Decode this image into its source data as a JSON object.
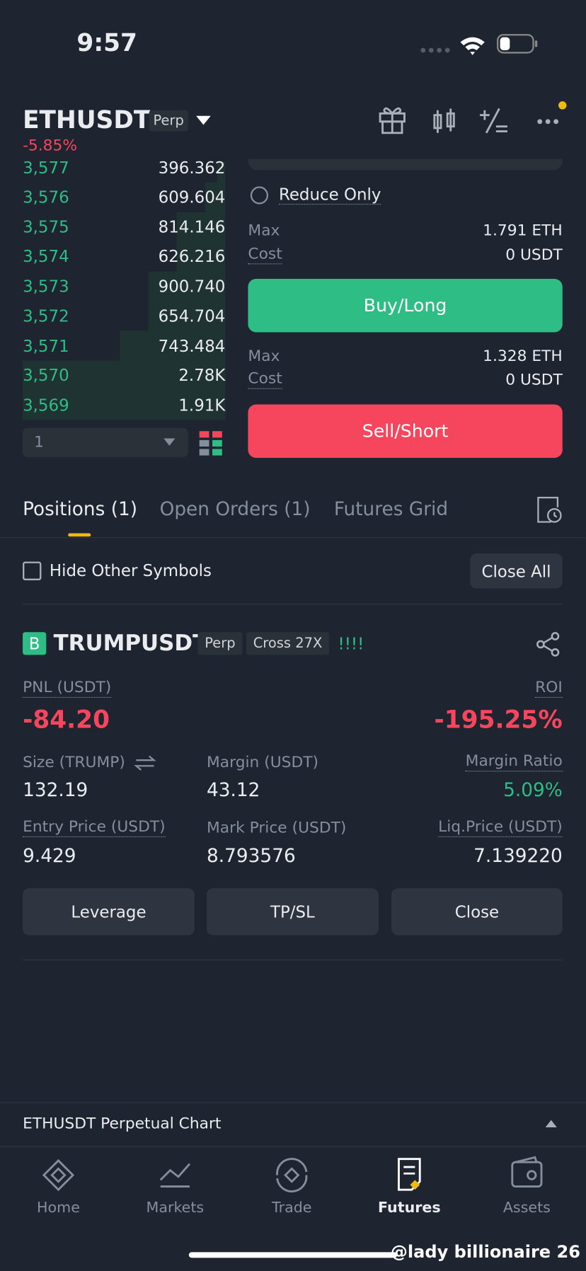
{
  "status_bar": {
    "time": "9:57"
  },
  "header": {
    "symbol": "ETHUSDT",
    "tag": "Perp",
    "change": "-5.85%"
  },
  "order_book": {
    "rows": [
      [
        "3,577",
        "396.362"
      ],
      [
        "3,576",
        "609.604"
      ],
      [
        "3,575",
        "814.146"
      ],
      [
        "3,574",
        "626.216"
      ],
      [
        "3,573",
        "900.740"
      ],
      [
        "3,572",
        "654.704"
      ],
      [
        "3,571",
        "743.484"
      ],
      [
        "3,570",
        "2.78K"
      ],
      [
        "3,569",
        "1.91K"
      ]
    ],
    "depth": "1"
  },
  "order_form": {
    "reduce_only": "Reduce Only",
    "buy": {
      "max_label": "Max",
      "max": "1.791 ETH",
      "cost_label": "Cost",
      "cost": "0 USDT",
      "button": "Buy/Long"
    },
    "sell": {
      "max_label": "Max",
      "max": "1.328 ETH",
      "cost_label": "Cost",
      "cost": "0 USDT",
      "button": "Sell/Short"
    }
  },
  "tabs": [
    "Positions (1)",
    "Open Orders (1)",
    "Futures Grid"
  ],
  "filter": {
    "hide_other": "Hide Other Symbols",
    "close_all": "Close All"
  },
  "position": {
    "badge": "B",
    "symbol": "TRUMPUSDT",
    "tags": [
      "Perp",
      "Cross 27X"
    ],
    "signal": "!!!!",
    "pnl_label": "PNL (USDT)",
    "pnl": "-84.20",
    "roi_label": "ROI",
    "roi": "-195.25%",
    "size_label": "Size (TRUMP)",
    "size": "132.19",
    "margin_label": "Margin (USDT)",
    "margin": "43.12",
    "ratio_label": "Margin Ratio",
    "ratio": "5.09%",
    "entry_label": "Entry Price (USDT)",
    "entry": "9.429",
    "mark_label": "Mark Price (USDT)",
    "mark": "8.793576",
    "liq_label": "Liq.Price (USDT)",
    "liq": "7.139220",
    "buttons": [
      "Leverage",
      "TP/SL",
      "Close"
    ]
  },
  "chart_bar": {
    "label": "ETHUSDT Perpetual  Chart"
  },
  "nav": [
    "Home",
    "Markets",
    "Trade",
    "Futures",
    "Assets"
  ],
  "watermark": "@lady billionaire 26"
}
